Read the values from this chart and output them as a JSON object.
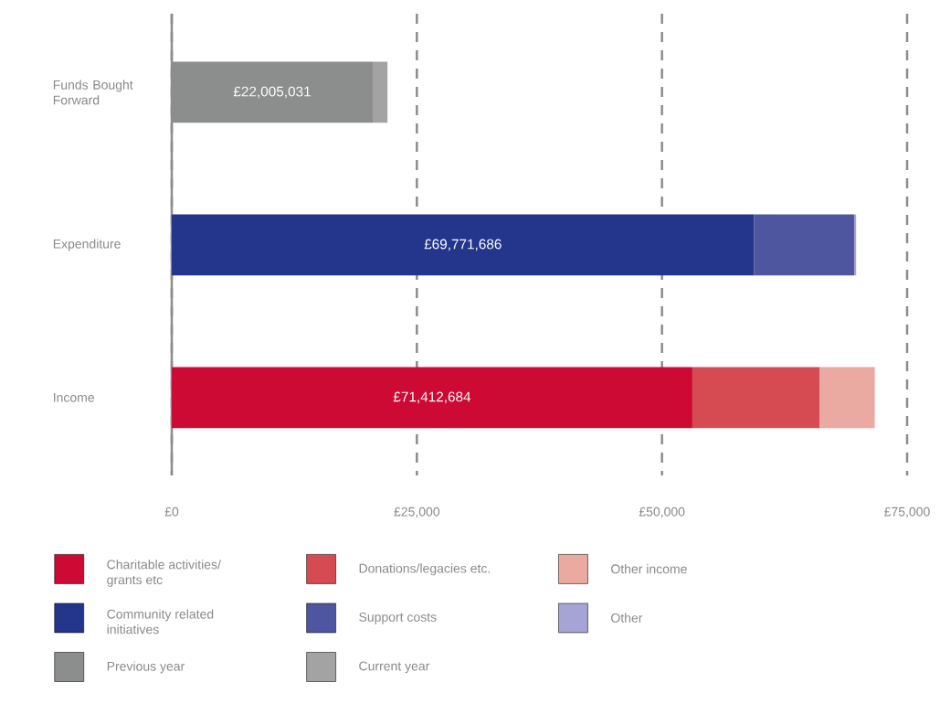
{
  "chart_data": {
    "type": "bar",
    "orientation": "horizontal",
    "stacked": true,
    "categories": [
      "Funds Bought Forward",
      "Expenditure",
      "Income"
    ],
    "series": [
      {
        "name": "Charitable activities/ grants etc",
        "color": "#cc0a33",
        "values": [
          null,
          null,
          53100
        ]
      },
      {
        "name": "Donations/legacies etc.",
        "color": "#d64b52",
        "values": [
          null,
          null,
          13000
        ]
      },
      {
        "name": "Other income",
        "color": "#eaaaa2",
        "values": [
          null,
          null,
          5600
        ]
      },
      {
        "name": "Community related initiatives",
        "color": "#24358c",
        "values": [
          null,
          59400,
          null
        ]
      },
      {
        "name": "Support costs",
        "color": "#4e56a0",
        "values": [
          null,
          10200,
          null
        ]
      },
      {
        "name": "Other",
        "color": "#a6a4d4",
        "values": [
          null,
          200,
          null
        ]
      },
      {
        "name": "Previous year",
        "color": "#8c8e8d",
        "values": [
          20500,
          null,
          null
        ]
      },
      {
        "name": "Current year",
        "color": "#a3a3a3",
        "values": [
          1500,
          null,
          null
        ]
      }
    ],
    "annotations": [
      "£22,005,031",
      "£69,771,686",
      "£71,412,684"
    ],
    "xlim": [
      0,
      75000
    ],
    "xticks": [
      {
        "value": 0,
        "label": "£0"
      },
      {
        "value": 25000,
        "label": "£25,000"
      },
      {
        "value": 50000,
        "label": "£50,000"
      },
      {
        "value": 75000,
        "label": "£75,000"
      }
    ],
    "grid": "x",
    "legend": "bottom"
  }
}
